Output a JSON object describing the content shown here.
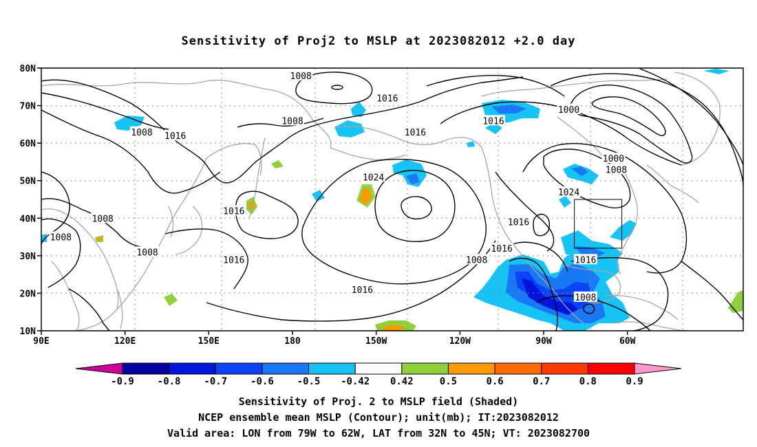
{
  "title": "Sensitivity of Proj2 to MSLP at 2023082012 +2.0 day",
  "map": {
    "lat_labels": [
      "80N",
      "70N",
      "60N",
      "50N",
      "40N",
      "30N",
      "20N",
      "10N"
    ],
    "lon_labels": [
      "90E",
      "120E",
      "150E",
      "180",
      "150W",
      "120W",
      "90W",
      "60W"
    ],
    "contour_labels": [
      {
        "text": "1008",
        "lon": -177,
        "lat": 78
      },
      {
        "text": "1016",
        "lon": -146,
        "lat": 72
      },
      {
        "text": "1008",
        "lon": 126,
        "lat": 63
      },
      {
        "text": "1016",
        "lon": 138,
        "lat": 62
      },
      {
        "text": "1008",
        "lon": 180,
        "lat": 66
      },
      {
        "text": "1016",
        "lon": -136,
        "lat": 63
      },
      {
        "text": "1016",
        "lon": -108,
        "lat": 66
      },
      {
        "text": "1000",
        "lon": -81,
        "lat": 69
      },
      {
        "text": "1000",
        "lon": -65,
        "lat": 56
      },
      {
        "text": "1008",
        "lon": -64,
        "lat": 53
      },
      {
        "text": "1024",
        "lon": -151,
        "lat": 51
      },
      {
        "text": "1024",
        "lon": -81,
        "lat": 47
      },
      {
        "text": "1016",
        "lon": 159,
        "lat": 42
      },
      {
        "text": "1008",
        "lon": 112,
        "lat": 40
      },
      {
        "text": "1008",
        "lon": 97,
        "lat": 35
      },
      {
        "text": "1008",
        "lon": 128,
        "lat": 31
      },
      {
        "text": "1016",
        "lon": 159,
        "lat": 29
      },
      {
        "text": "1016",
        "lon": -99,
        "lat": 39
      },
      {
        "text": "1016",
        "lon": -105,
        "lat": 32
      },
      {
        "text": "1008",
        "lon": -114,
        "lat": 29
      },
      {
        "text": "1016",
        "lon": -75,
        "lat": 29
      },
      {
        "text": "1016",
        "lon": -155,
        "lat": 21
      },
      {
        "text": "1008",
        "lon": -75,
        "lat": 19
      }
    ],
    "valid_box": {
      "lon_from": -79,
      "lon_to": -62,
      "lat_from": 32,
      "lat_to": 45
    },
    "colors": {
      "contour": "#000000",
      "coast": "#a6a6a6",
      "grid": "#888888"
    }
  },
  "colorbar": {
    "labels": [
      "-0.9",
      "-0.8",
      "-0.7",
      "-0.6",
      "-0.5",
      "-0.42",
      "0.42",
      "0.5",
      "0.6",
      "0.7",
      "0.8",
      "0.9"
    ],
    "colors": [
      "#cc0099",
      "#0000a0",
      "#0014dc",
      "#0b44f4",
      "#1a78f4",
      "#16c3f4",
      "#ffffff",
      "#8fd03c",
      "#fa9a00",
      "#ff6a00",
      "#ff3a00",
      "#ff0000",
      "#ff99cc"
    ]
  },
  "caption": {
    "line1": "Sensitivity of Proj. 2 to MSLP field (Shaded)",
    "line2": "NCEP ensemble mean MSLP (Contour); unit(mb); IT:2023082012",
    "line3": "Valid area: LON from 79W to 62W, LAT from 32N to 45N; VT: 2023082700"
  }
}
